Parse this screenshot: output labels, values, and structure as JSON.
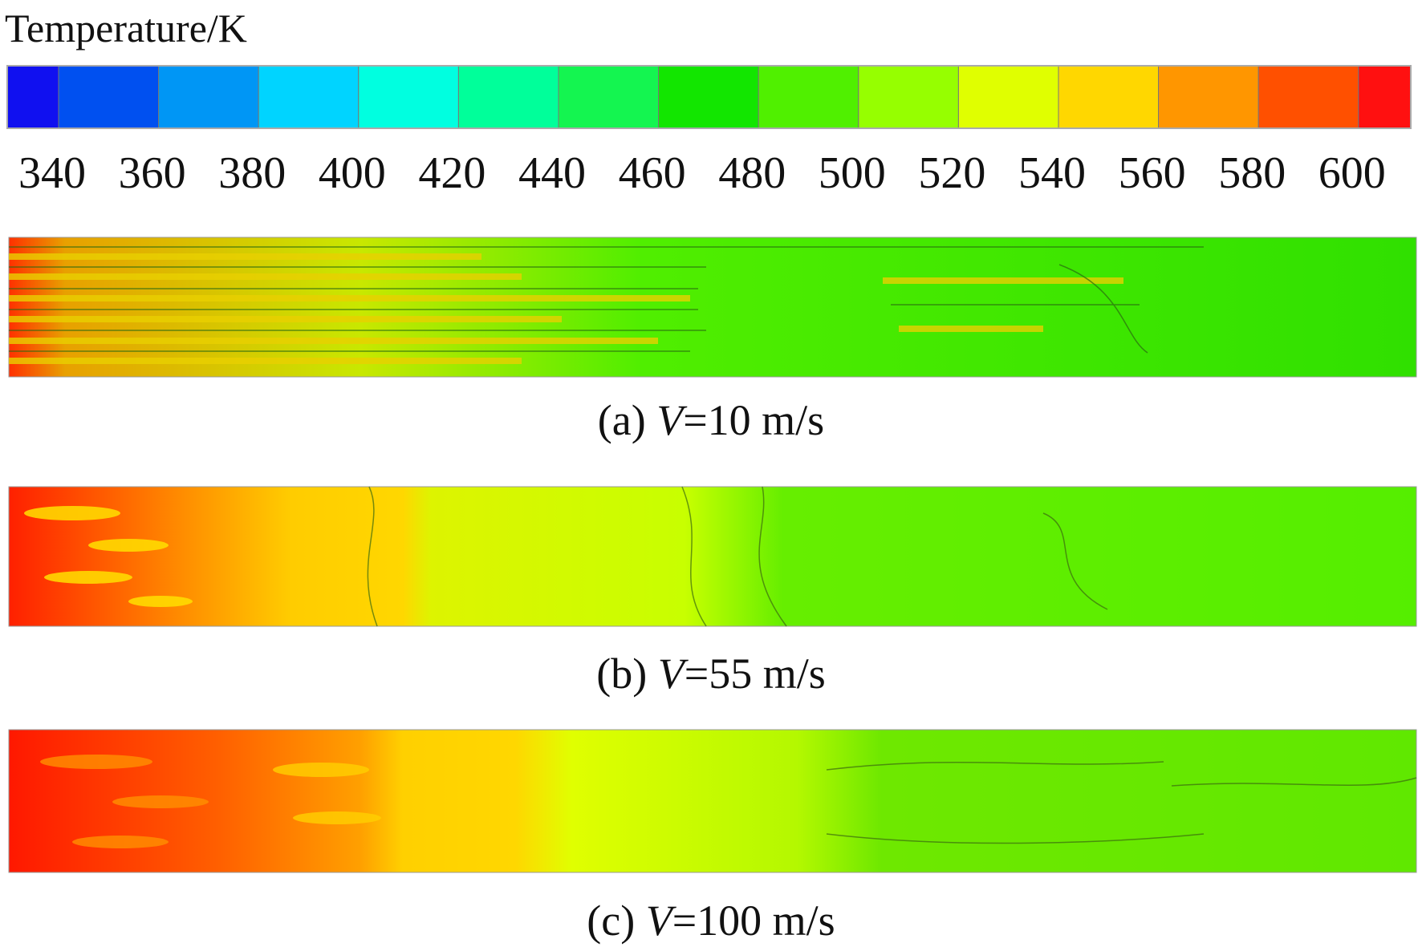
{
  "colorbar": {
    "title": "Temperature/K",
    "colors": [
      "#1010f0",
      "#0050f0",
      "#0096f5",
      "#00d4ff",
      "#00ffe0",
      "#00ff9a",
      "#14f550",
      "#12e600",
      "#50f000",
      "#96ff00",
      "#e0ff00",
      "#ffd700",
      "#ff9600",
      "#ff5000",
      "#ff1010"
    ],
    "ticks": [
      340,
      360,
      380,
      400,
      420,
      440,
      460,
      480,
      500,
      520,
      540,
      560,
      580,
      600
    ]
  },
  "panels": [
    {
      "label": "(a)",
      "variable": "V",
      "value": "=10 m/s"
    },
    {
      "label": "(b)",
      "variable": "V",
      "value": "=55 m/s"
    },
    {
      "label": "(c)",
      "variable": "V",
      "value": "=100 m/s"
    }
  ]
}
